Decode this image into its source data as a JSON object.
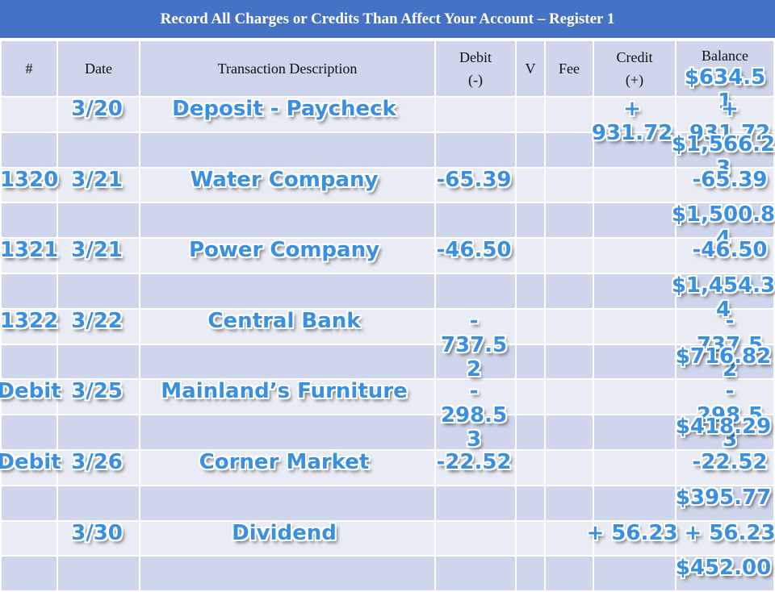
{
  "title": "Record All Charges or Credits Than Affect Your Account – Register 1",
  "headers": {
    "num": "#",
    "date": "Date",
    "desc": "Transaction  Description",
    "debit": "Debit\n(-)",
    "v": "V",
    "fee": "Fee",
    "credit": "Credit\n(+)",
    "balance": "Balance"
  },
  "colors": {
    "title_bg": "#4472c4",
    "row_dark": "#cfd5ea",
    "row_light": "#e9ebf5",
    "handwriting": "#3a8fe0"
  },
  "starting_balance": "$634.5\n1",
  "transactions": [
    {
      "num": "",
      "date": "3/20",
      "desc": "Deposit - Paycheck",
      "debit": "",
      "credit": "+\n931.72",
      "balance_entry": "+\n931.72",
      "new_balance": "$1,566.2\n3"
    },
    {
      "num": "1320",
      "date": "3/21",
      "desc": "Water Company",
      "debit": "-65.39",
      "credit": "",
      "balance_entry": "-65.39",
      "new_balance": "$1,500.8\n4"
    },
    {
      "num": "1321",
      "date": "3/21",
      "desc": "Power Company",
      "debit": "-46.50",
      "credit": "",
      "balance_entry": "-46.50",
      "new_balance": "$1,454.3\n4"
    },
    {
      "num": "1322",
      "date": "3/22",
      "desc": "Central Bank",
      "debit": "-\n737.5\n2",
      "credit": "",
      "balance_entry": "-\n737.5\n2",
      "new_balance": "$716.82"
    },
    {
      "num": "Debit",
      "date": "3/25",
      "desc": "Mainland’s Furniture",
      "debit": "-\n298.5\n3",
      "credit": "",
      "balance_entry": "-\n298.5\n3",
      "new_balance": "$418.29"
    },
    {
      "num": "Debit",
      "date": "3/26",
      "desc": "Corner Market",
      "debit": "-22.52",
      "credit": "",
      "balance_entry": "-22.52",
      "new_balance": "$395.77"
    },
    {
      "num": "",
      "date": "3/30",
      "desc": "Dividend",
      "debit": "",
      "credit": "+ 56.23",
      "balance_entry": "+ 56.23",
      "new_balance": "$452.00"
    }
  ]
}
